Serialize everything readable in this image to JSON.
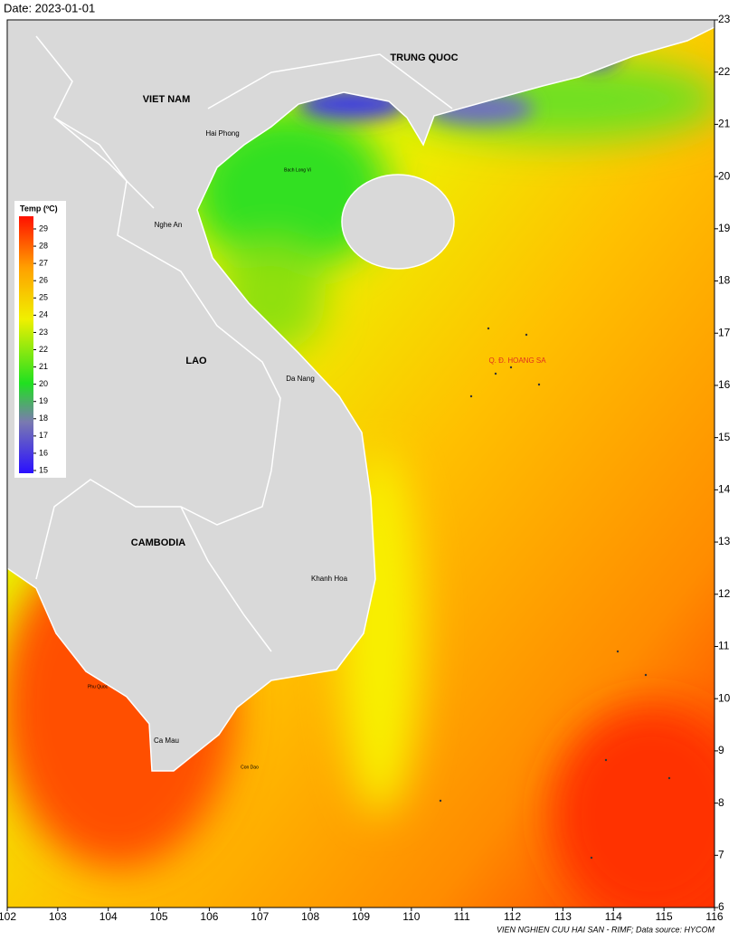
{
  "header": {
    "date": "Date: 2023-01-01"
  },
  "map": {
    "xlim": [
      102,
      116
    ],
    "ylim": [
      6,
      23
    ],
    "xticks": [
      102,
      103,
      104,
      105,
      106,
      107,
      108,
      109,
      110,
      111,
      112,
      113,
      114,
      115,
      116
    ],
    "yticks": [
      6,
      7,
      8,
      9,
      10,
      11,
      12,
      13,
      14,
      15,
      16,
      17,
      18,
      19,
      20,
      21,
      22,
      23
    ],
    "places": [
      "TRUNG QUOC",
      "VIET NAM",
      "Hai Phong",
      "Bach Long Vi",
      "Nghe An",
      "LAO",
      "Da Nang",
      "Q. Đ. HOANG SA",
      "CAMBODIA",
      "Khanh Hoa",
      "Phu Quoc",
      "Ca Mau",
      "Con Dao"
    ]
  },
  "legend": {
    "title": "Temp (ºC)",
    "ticks": [
      15,
      16,
      17,
      18,
      19,
      20,
      21,
      22,
      23,
      24,
      25,
      26,
      27,
      28,
      29
    ]
  },
  "footer": "VIEN NGHIEN CUU HAI SAN - RIMF; Data source: HYCOM"
}
